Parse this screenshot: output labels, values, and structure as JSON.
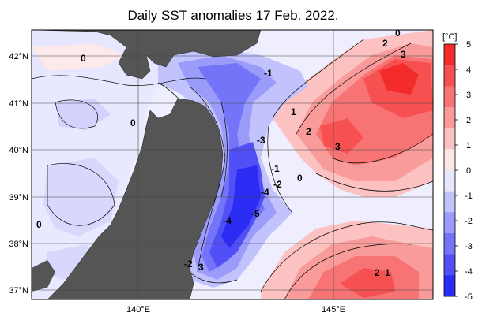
{
  "title": "Daily SST anomalies 17 Feb. 2022.",
  "unit_label": "[°C]",
  "lat_labels": [
    "42°N",
    "41°N",
    "40°N",
    "39°N",
    "38°N",
    "37°N"
  ],
  "lon_labels": [
    "140°E",
    "145°E"
  ],
  "colorbar": {
    "ticks": [
      "5",
      "4",
      "3",
      "2",
      "1",
      "0",
      "-1",
      "-2",
      "-3",
      "-4",
      "-5"
    ],
    "colors": [
      "#f42b2b",
      "#f65050",
      "#f87474",
      "#fa9b9b",
      "#fcc2c2",
      "#fee6e6",
      "#e6e6fe",
      "#c2c2fc",
      "#9b9bfa",
      "#7474f8",
      "#5050f6",
      "#2b2bf4"
    ]
  },
  "contour_labels": [
    {
      "text": "0"
    },
    {
      "text": "0"
    },
    {
      "text": "0"
    },
    {
      "text": "0"
    },
    {
      "text": "0"
    },
    {
      "text": "-1"
    },
    {
      "text": "-1"
    },
    {
      "text": "1"
    },
    {
      "text": "1"
    },
    {
      "text": "2"
    },
    {
      "text": "2"
    },
    {
      "text": "2"
    },
    {
      "text": "3"
    },
    {
      "text": "3"
    },
    {
      "text": "3"
    },
    {
      "text": "-2"
    },
    {
      "text": "-2"
    },
    {
      "text": "-3"
    },
    {
      "text": "-4"
    },
    {
      "text": "-4"
    },
    {
      "text": "-5"
    }
  ],
  "land_color": "#555555"
}
